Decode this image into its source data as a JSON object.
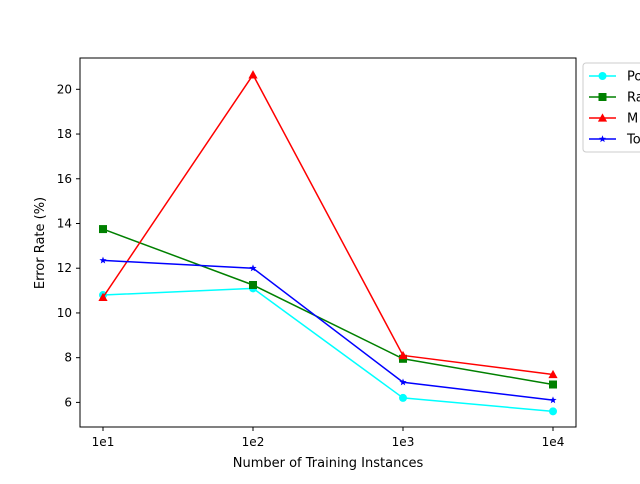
{
  "chart_data": {
    "type": "line",
    "title": "",
    "xlabel": "Number of Training Instances",
    "ylabel": "Error Rate (%)",
    "x": [
      "1e1",
      "1e2",
      "1e3",
      "1e4"
    ],
    "ylim": [
      4.9,
      21.4
    ],
    "yticks": [
      6,
      8,
      10,
      12,
      14,
      16,
      18,
      20
    ],
    "grid": false,
    "legend_position": "outside-top-right",
    "series": [
      {
        "name": "Po",
        "color": "#00ffff",
        "marker": "circle",
        "values": [
          10.8,
          11.1,
          6.2,
          5.6
        ]
      },
      {
        "name": "Ra",
        "color": "#008000",
        "marker": "square",
        "values": [
          13.75,
          11.25,
          7.95,
          6.8
        ]
      },
      {
        "name": "M",
        "color": "#ff0000",
        "marker": "triangle",
        "values": [
          10.7,
          20.65,
          8.1,
          7.25
        ]
      },
      {
        "name": "To",
        "color": "#0000ff",
        "marker": "star",
        "values": [
          12.35,
          12.0,
          6.9,
          6.1
        ]
      }
    ]
  }
}
